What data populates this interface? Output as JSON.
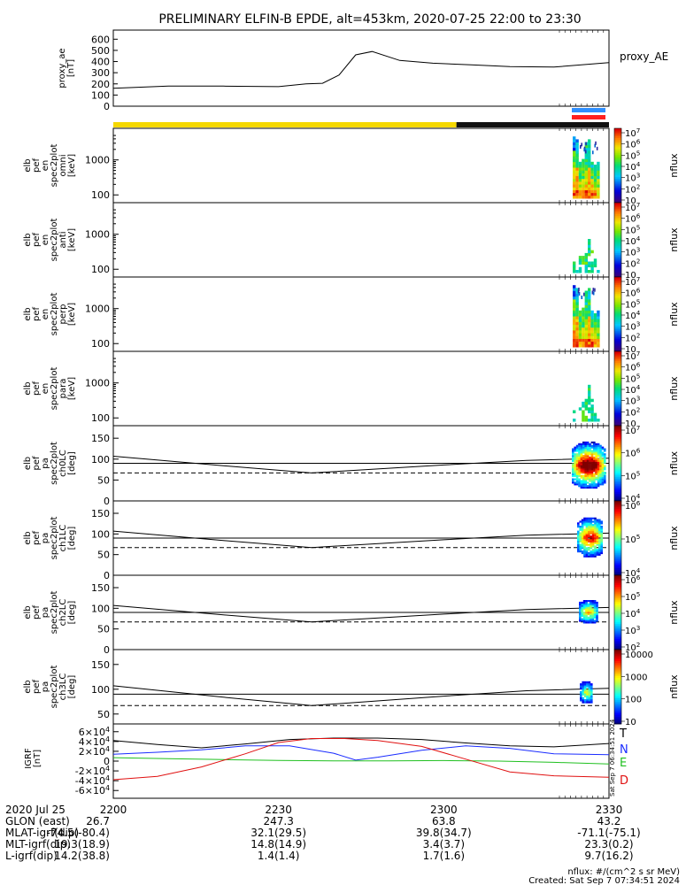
{
  "title": "PRELIMINARY ELFIN-B EPDE, alt=453km, 2020-07-25 22:00 to 23:30",
  "colors": {
    "sunlit": "#f5d800",
    "eclipse": "#111111",
    "bar_blue": "#2f8fff",
    "bar_red": "#ff2020",
    "T": "#000000",
    "N": "#1a2cff",
    "E": "#20c020",
    "D": "#e01010"
  },
  "spec_data": {
    "energy_cols_spec": [
      {
        "h": 0.97,
        "f": [
          1.0,
          0.85,
          0.6,
          0.0
        ]
      },
      {
        "h": 0.94,
        "f": [
          1.0,
          1.0,
          0.55,
          0.15
        ]
      },
      {
        "h": 0.55,
        "f": [
          0.9,
          0.8,
          0.5,
          0.5
        ]
      },
      {
        "h": 0.62,
        "f": [
          1.0,
          0.85,
          0.55,
          0.5
        ]
      },
      {
        "h": 0.88,
        "f": [
          1.0,
          0.85,
          0.45,
          0.4
        ]
      },
      {
        "h": 0.95,
        "f": [
          1.0,
          0.9,
          0.5,
          0.35
        ]
      },
      {
        "h": 0.58,
        "f": [
          1.0,
          0.95,
          0.55,
          0.35
        ]
      },
      {
        "h": 0.52,
        "f": [
          0.9,
          0.75,
          0.6,
          0.3
        ]
      },
      {
        "h": 0.58,
        "f": [
          0.8,
          0.7,
          0.5,
          0.2
        ]
      }
    ],
    "energy_cols_weak": [
      {
        "h": 0.14,
        "f": 0.45
      },
      {
        "h": 0.0,
        "f": 0.0
      },
      {
        "h": 0.25,
        "f": 0.5
      },
      {
        "h": 0.3,
        "f": 0.55
      },
      {
        "h": 0.35,
        "f": 0.55
      },
      {
        "h": 0.55,
        "f": 0.45
      },
      {
        "h": 0.32,
        "f": 0.6
      },
      {
        "h": 0.2,
        "f": 0.45
      },
      {
        "h": 0.0,
        "f": 0.0
      }
    ]
  },
  "chart_data": [
    {
      "type": "line",
      "panel": "proxy_ae",
      "ylabel": "proxy_ae [nT]",
      "series_label": "proxy_AE",
      "ylim": [
        0,
        650
      ],
      "yticks": [
        "0",
        "100",
        "200",
        "300",
        "400",
        "500",
        "600"
      ],
      "x_minutes": [
        0,
        10,
        20,
        30,
        35,
        38,
        41,
        44,
        47,
        52,
        58,
        65,
        72,
        80,
        90
      ],
      "values": [
        160,
        180,
        180,
        175,
        200,
        205,
        280,
        460,
        490,
        410,
        385,
        370,
        355,
        350,
        390
      ]
    },
    {
      "type": "heatmap",
      "panel": "elb pef en spec2plot omni [keV]",
      "ylabel": [
        "elb",
        "pef",
        "en",
        "spec2plot",
        "omni",
        "[keV]"
      ],
      "yscale": "log",
      "yticks": [
        "100",
        "1000"
      ],
      "colorbar": {
        "label": "nflux",
        "ticks": [
          "10",
          "10^2",
          "10^3",
          "10^4",
          "10^5",
          "10^6",
          "10^7"
        ]
      }
    },
    {
      "type": "heatmap",
      "panel": "elb pef en spec2plot anti [keV]",
      "ylabel": [
        "elb",
        "pef",
        "en",
        "spec2plot",
        "anti",
        "[keV]"
      ],
      "yscale": "log",
      "yticks": [
        "100",
        "1000"
      ],
      "colorbar": {
        "label": "nflux",
        "ticks": [
          "10",
          "10^2",
          "10^3",
          "10^4",
          "10^5",
          "10^6",
          "10^7"
        ]
      }
    },
    {
      "type": "heatmap",
      "panel": "elb pef en spec2plot perp [keV]",
      "ylabel": [
        "elb",
        "pef",
        "en",
        "spec2plot",
        "perp",
        "[keV]"
      ],
      "yscale": "log",
      "yticks": [
        "100",
        "1000"
      ],
      "colorbar": {
        "label": "nflux",
        "ticks": [
          "10",
          "10^2",
          "10^3",
          "10^4",
          "10^5",
          "10^6",
          "10^7"
        ]
      }
    },
    {
      "type": "heatmap",
      "panel": "elb pef en spec2plot para [keV]",
      "ylabel": [
        "elb",
        "pef",
        "en",
        "spec2plot",
        "para",
        "[keV]"
      ],
      "yscale": "log",
      "yticks": [
        "100",
        "1000"
      ],
      "colorbar": {
        "label": "nflux",
        "ticks": [
          "10",
          "10^2",
          "10^3",
          "10^4",
          "10^5",
          "10^6",
          "10^7"
        ]
      }
    },
    {
      "type": "heatmap",
      "panel": "elb pef pa spec2plot ch0LC [deg]",
      "ylabel": [
        "elb",
        "pef",
        "pa",
        "spec2plot",
        "ch0LC",
        "[deg]"
      ],
      "yticks": [
        "0",
        "50",
        "100",
        "150"
      ],
      "ylim": [
        0,
        180
      ],
      "colorbar": {
        "label": "nflux",
        "ticks": [
          "10^4",
          "10^5",
          "10^6",
          "10^7"
        ]
      }
    },
    {
      "type": "heatmap",
      "panel": "elb pef pa spec2plot ch1LC [deg]",
      "ylabel": [
        "elb",
        "pef",
        "pa",
        "spec2plot",
        "ch1LC",
        "[deg]"
      ],
      "yticks": [
        "0",
        "50",
        "100",
        "150"
      ],
      "ylim": [
        0,
        180
      ],
      "colorbar": {
        "label": "nflux",
        "ticks": [
          "10^4",
          "10^5",
          "10^6"
        ]
      }
    },
    {
      "type": "heatmap",
      "panel": "elb pef pa spec2plot ch2LC [deg]",
      "ylabel": [
        "elb",
        "pef",
        "pa",
        "spec2plot",
        "ch2LC",
        "[deg]"
      ],
      "yticks": [
        "0",
        "50",
        "100",
        "150"
      ],
      "ylim": [
        0,
        180
      ],
      "colorbar": {
        "label": "nflux",
        "ticks": [
          "10^2",
          "10^3",
          "10^4",
          "10^5",
          "10^6"
        ]
      }
    },
    {
      "type": "heatmap",
      "panel": "elb pef pa spec2plot ch3LC [deg]",
      "ylabel": [
        "elb",
        "pef",
        "pa",
        "spec2plot",
        "ch3LC",
        "[deg]"
      ],
      "yticks": [
        "50",
        "100",
        "150"
      ],
      "ylim": [
        30,
        180
      ],
      "colorbar": {
        "label": "nflux",
        "ticks": [
          "10",
          "100",
          "1000",
          "10000"
        ]
      }
    },
    {
      "type": "line",
      "panel": "IGRF [nT]",
      "ylabel": [
        "IGRF",
        "[nT]"
      ],
      "ylim": [
        -65000,
        65000
      ],
      "yticks": [
        "-6×10^4",
        "-4×10^4",
        "-2×10^4",
        "0",
        "2×10^4",
        "4×10^4",
        "6×10^4"
      ],
      "series": [
        {
          "name": "T",
          "x_minutes": [
            0,
            8,
            16,
            24,
            32,
            40,
            48,
            56,
            64,
            72,
            80,
            90
          ],
          "values": [
            42000,
            34000,
            27000,
            35000,
            44000,
            47000,
            47000,
            44000,
            37000,
            31000,
            29000,
            36000
          ]
        },
        {
          "name": "N",
          "x_minutes": [
            0,
            8,
            16,
            24,
            32,
            40,
            44,
            48,
            56,
            64,
            72,
            80,
            90
          ],
          "values": [
            14000,
            18000,
            23000,
            31000,
            31000,
            16000,
            2000,
            8000,
            22000,
            31000,
            26000,
            15000,
            13000
          ]
        },
        {
          "name": "E",
          "x_minutes": [
            0,
            10,
            20,
            30,
            40,
            50,
            60,
            70,
            80,
            90
          ],
          "values": [
            7000,
            5000,
            3000,
            1500,
            500,
            500,
            1000,
            0,
            -2500,
            -6000
          ]
        },
        {
          "name": "D",
          "x_minutes": [
            0,
            8,
            16,
            24,
            30,
            36,
            42,
            48,
            56,
            64,
            72,
            80,
            90
          ],
          "values": [
            -38000,
            -31000,
            -12000,
            15000,
            38000,
            46000,
            46000,
            42000,
            30000,
            4000,
            -22000,
            -30000,
            -33000
          ]
        }
      ]
    }
  ],
  "xaxis": {
    "ticks": [
      {
        "m": 0,
        "label": "2200"
      },
      {
        "m": 30,
        "label": "2230"
      },
      {
        "m": 60,
        "label": "2300"
      },
      {
        "m": 90,
        "label": "2330"
      }
    ]
  },
  "footer": {
    "date": "2020 Jul 25",
    "rows": [
      {
        "label": "GLON (east)",
        "values": [
          "26.7",
          "247.3",
          "63.8",
          "43.2"
        ]
      },
      {
        "label": "MLAT-igrf(dip)",
        "values": [
          "-74.5(-80.4)",
          "32.1(29.5)",
          "39.8(34.7)",
          "-71.1(-75.1)"
        ]
      },
      {
        "label": "MLT-igrf(dip)",
        "values": [
          "19.3(18.9)",
          "14.8(14.9)",
          "3.4(3.7)",
          "23.3(0.2)"
        ]
      },
      {
        "label": "L-igrf(dip)",
        "values": [
          "14.2(38.8)",
          "1.4(1.4)",
          "1.7(1.6)",
          "9.7(16.2)"
        ]
      }
    ],
    "units_note": "nflux: #/(cm^2 s sr MeV)",
    "created": "Created: Sat Sep  7 07:34:51 2024",
    "side_stamp": "Sat Sep  7 06:34:51 2024"
  }
}
